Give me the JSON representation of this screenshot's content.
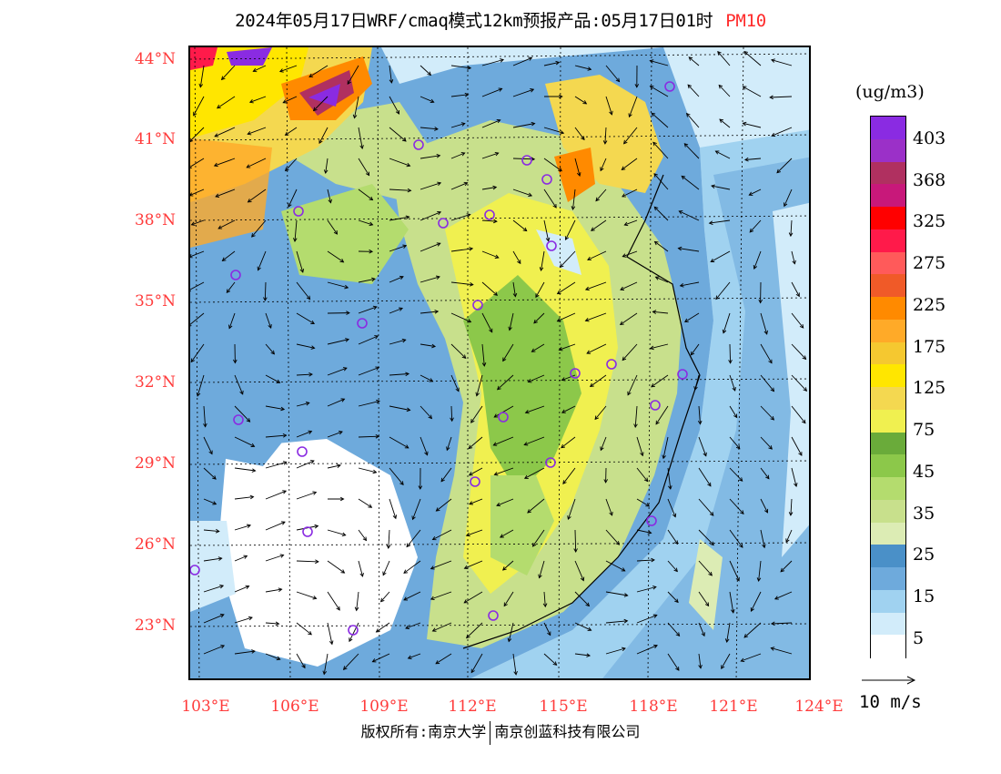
{
  "title": {
    "main": "2024年05月17日WRF/cmaq模式12km预报产品:05月17日01时",
    "variable": "PM10"
  },
  "lat_labels": [
    "44°N",
    "41°N",
    "38°N",
    "35°N",
    "32°N",
    "29°N",
    "26°N",
    "23°N"
  ],
  "lon_labels": [
    "103°E",
    "106°E",
    "109°E",
    "112°E",
    "115°E",
    "118°E",
    "121°E",
    "124°E"
  ],
  "colorbar": {
    "unit": "(ug/m3)",
    "labels": [
      "403",
      "368",
      "325",
      "275",
      "225",
      "175",
      "125",
      "75",
      "45",
      "35",
      "25",
      "15",
      "5"
    ],
    "colors": [
      "#8a2be2",
      "#9b30c8",
      "#b03060",
      "#c8187a",
      "#ff0000",
      "#ff1a4a",
      "#ff5a5a",
      "#f05a28",
      "#ff8a00",
      "#ffaa28",
      "#f5c830",
      "#ffe600",
      "#f4d850",
      "#f0f050",
      "#6aab3a",
      "#8cc84a",
      "#b4dc6e",
      "#c8e08c",
      "#dcecb4",
      "#4a90c8",
      "#6eaadc",
      "#a0d2f0",
      "#d2ecfa",
      "#ffffff"
    ]
  },
  "wind": {
    "label": "10 m/s"
  },
  "copyright": {
    "left": "版权所有:南京大学",
    "right": "南京创蓝科技有限公司"
  },
  "colors": {
    "label_red": "#ff3b3b",
    "station_marker": "#8a2be2",
    "sea": "#a0d2f0"
  }
}
